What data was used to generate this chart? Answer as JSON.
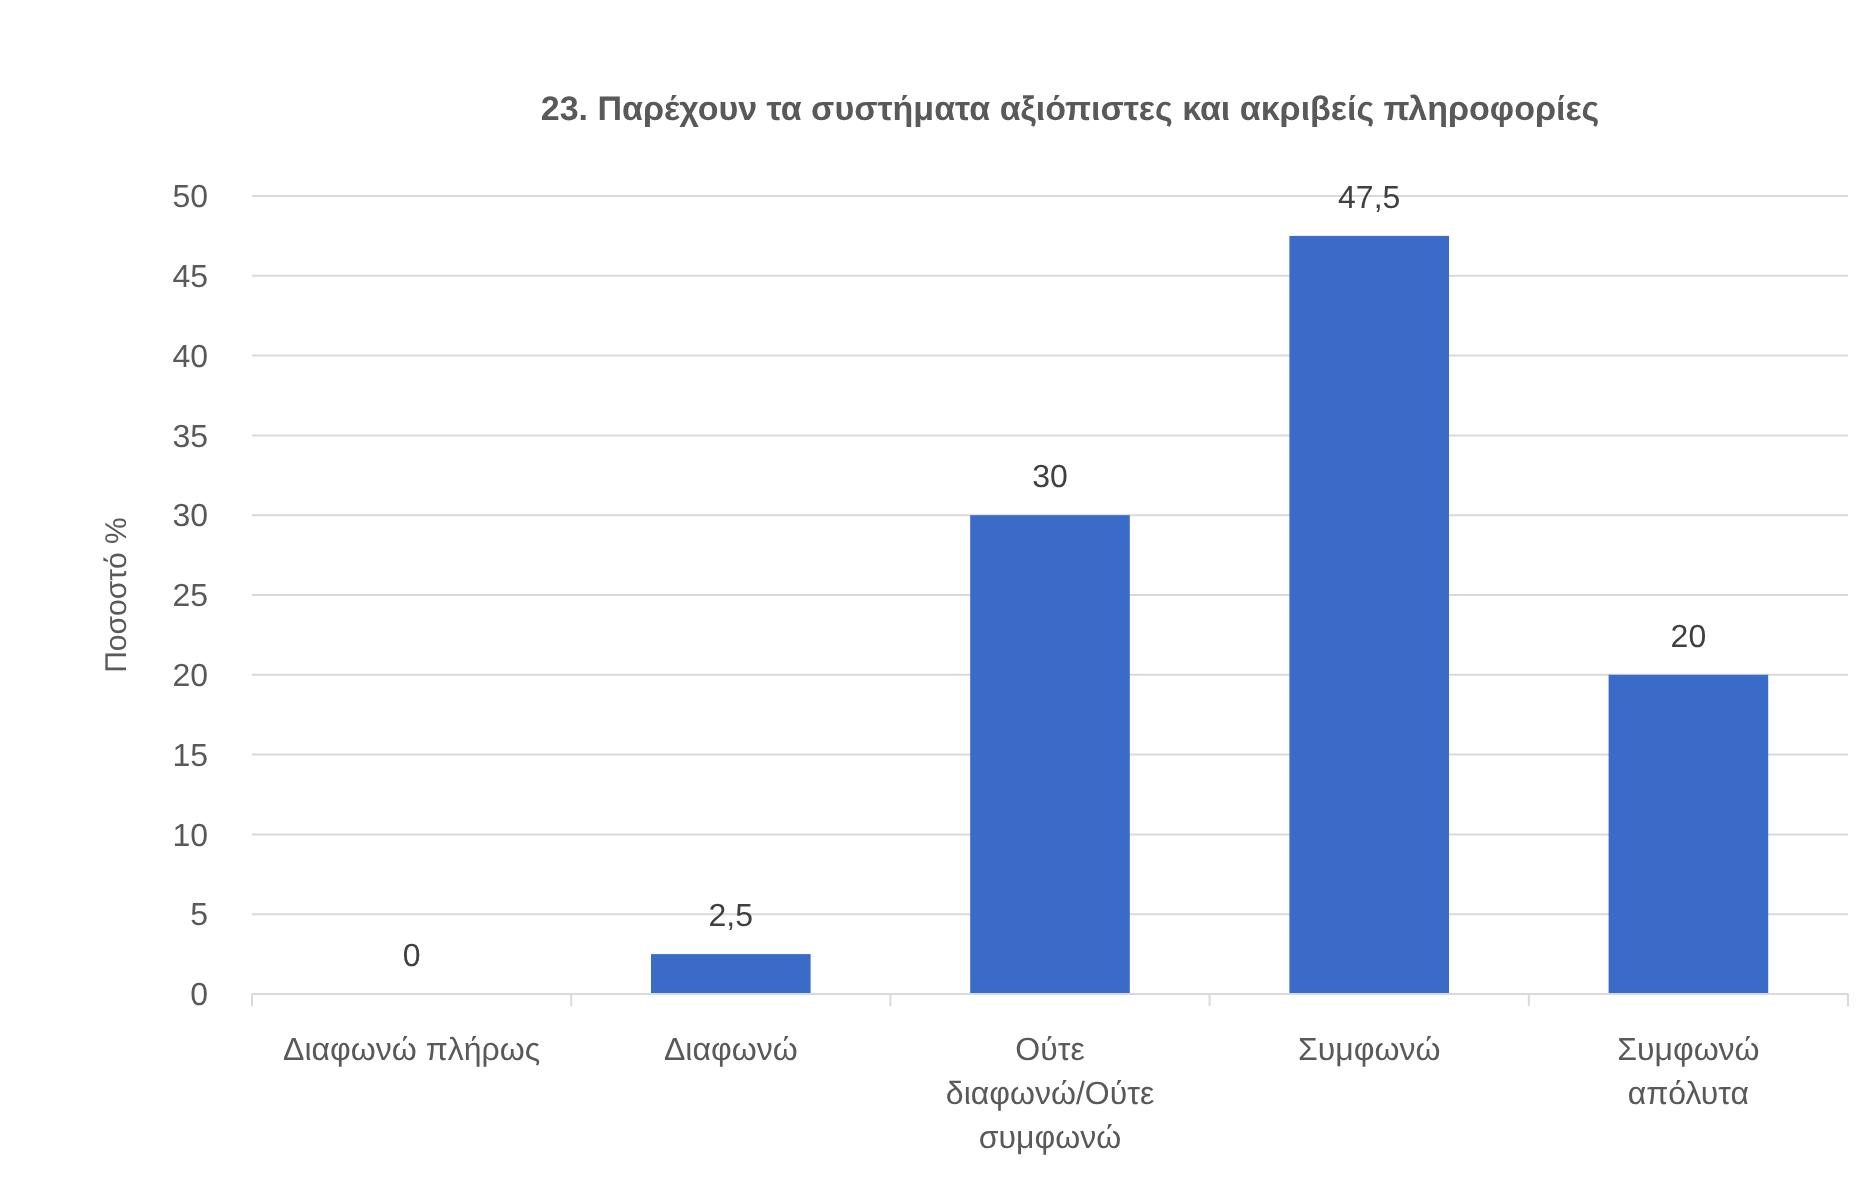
{
  "chart_data": {
    "type": "bar",
    "title": "23. Παρέχουν τα συστήματα αξιόπιστες και ακριβείς πληροφορίες",
    "ylabel": "Ποσοστό %",
    "categories": [
      "Διαφωνώ πλήρως",
      "Διαφωνώ",
      "Ούτε διαφωνώ/Ούτε συμφωνώ",
      "Συμφωνώ",
      "Συμφωνώ απόλυτα"
    ],
    "values": [
      0,
      2.5,
      30,
      47.5,
      20
    ],
    "color": "#3a6bc8",
    "value_labels": [
      "0",
      "2,5",
      "30",
      "47,5",
      "20"
    ],
    "ylim": [
      0,
      50
    ],
    "yticks": [
      0,
      5,
      10,
      15,
      20,
      25,
      30,
      35,
      40,
      45,
      50
    ],
    "grid": "y"
  }
}
